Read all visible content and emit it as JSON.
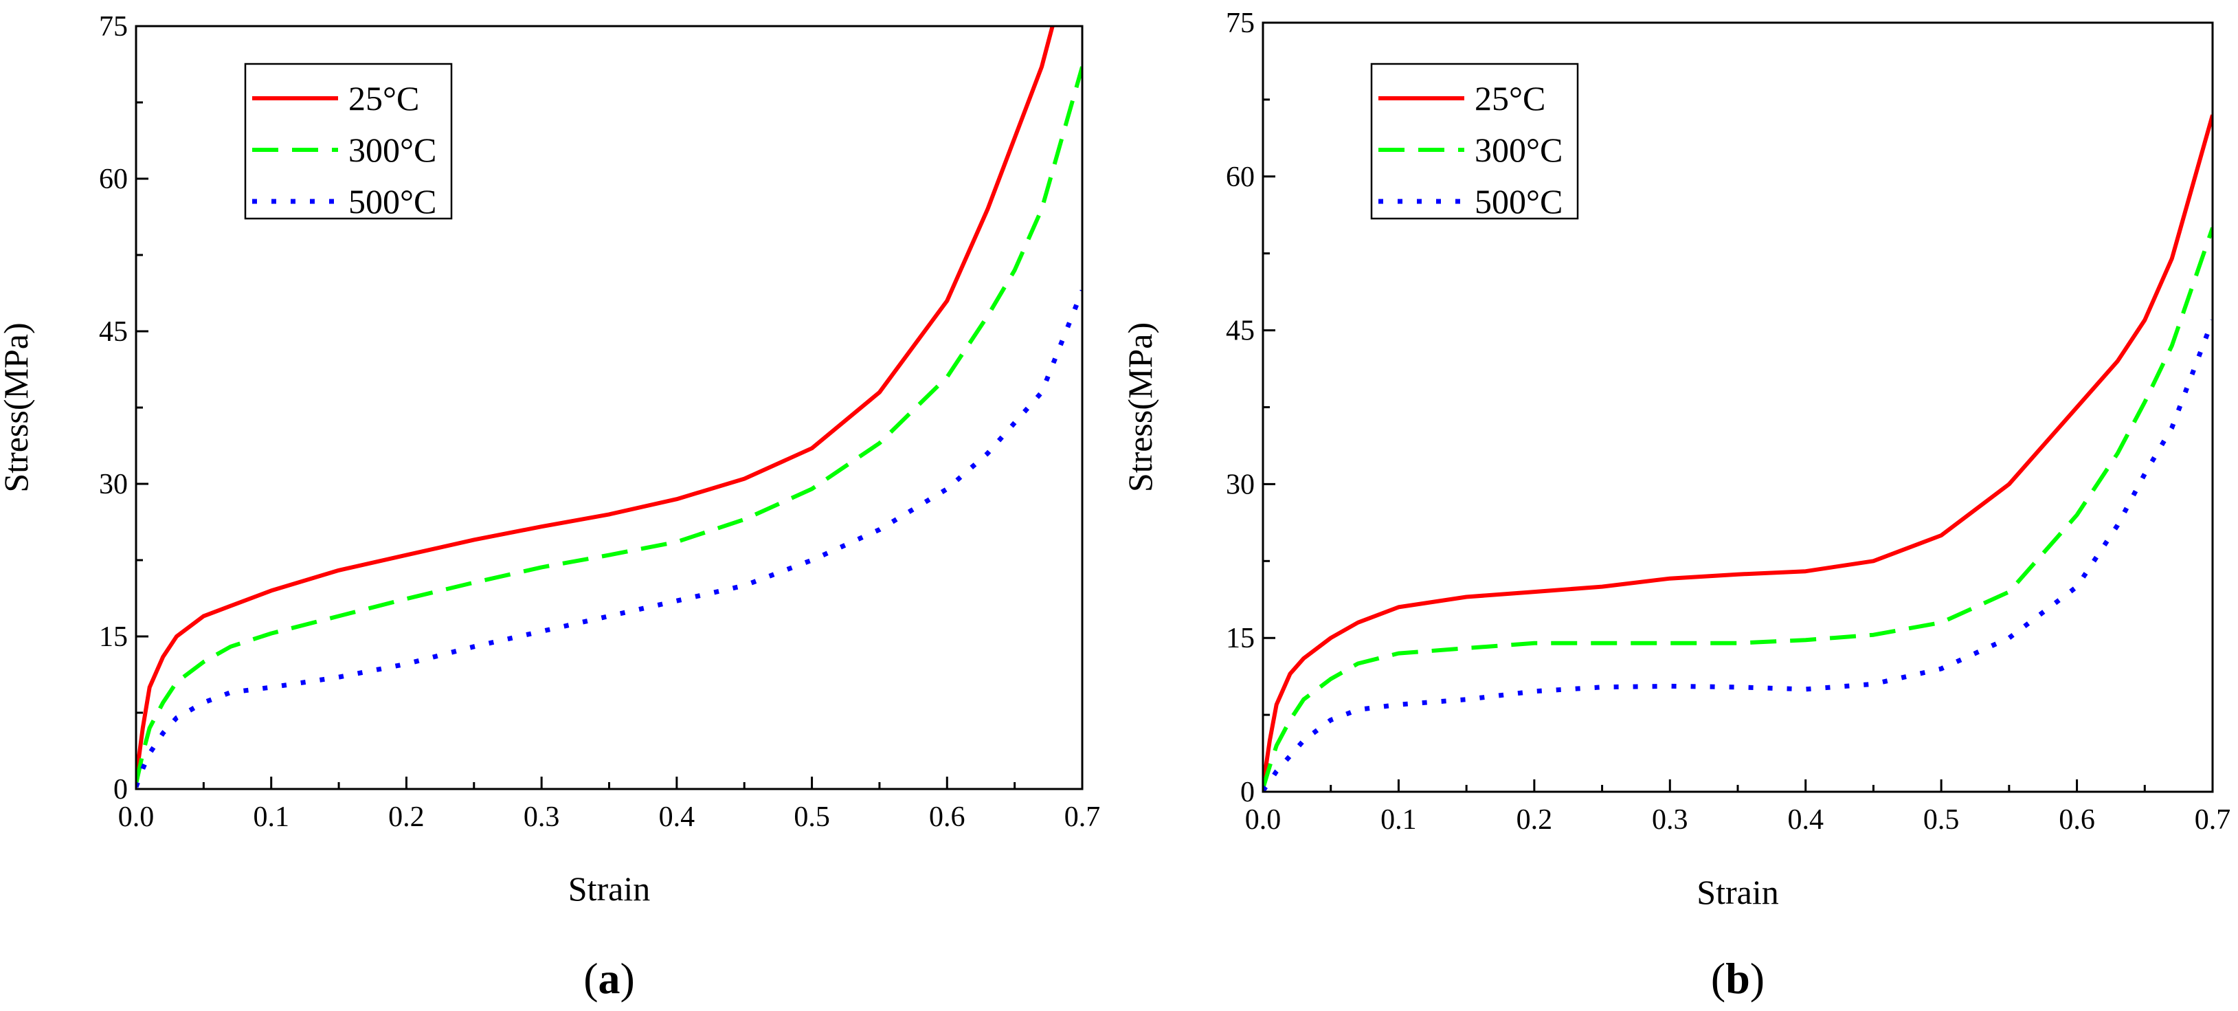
{
  "chart_data": [
    {
      "type": "line",
      "panel_label": "a",
      "xlabel": "Strain",
      "ylabel": "Stress(MPa)",
      "xlim": [
        0.0,
        0.7
      ],
      "ylim": [
        0,
        75
      ],
      "xticks": [
        "0.0",
        "0.1",
        "0.2",
        "0.3",
        "0.4",
        "0.5",
        "0.6",
        "0.7"
      ],
      "yticks": [
        "0",
        "15",
        "30",
        "45",
        "60",
        "75"
      ],
      "legend_position": "top-left",
      "series": [
        {
          "name": "25°C",
          "color": "#ff0000",
          "style": "solid",
          "x": [
            0,
            0.005,
            0.01,
            0.02,
            0.03,
            0.05,
            0.07,
            0.1,
            0.15,
            0.2,
            0.25,
            0.3,
            0.35,
            0.4,
            0.45,
            0.5,
            0.55,
            0.6,
            0.63,
            0.65,
            0.67,
            0.678
          ],
          "y": [
            1,
            6,
            10,
            13,
            15,
            17,
            18,
            19.5,
            21.5,
            23,
            24.5,
            25.8,
            27,
            28.5,
            30.5,
            33.5,
            39,
            48,
            57,
            64,
            71,
            75
          ]
        },
        {
          "name": "300°C",
          "color": "#00ff00",
          "style": "dashed",
          "x": [
            0,
            0.005,
            0.01,
            0.02,
            0.03,
            0.05,
            0.07,
            0.1,
            0.15,
            0.2,
            0.25,
            0.3,
            0.35,
            0.4,
            0.45,
            0.5,
            0.55,
            0.6,
            0.63,
            0.65,
            0.67,
            0.7
          ],
          "y": [
            0.5,
            3.5,
            6,
            8.5,
            10.5,
            12.5,
            14,
            15.3,
            17,
            18.7,
            20.3,
            21.8,
            23,
            24.3,
            26.5,
            29.5,
            34,
            40.5,
            46.5,
            51,
            57,
            71
          ]
        },
        {
          "name": "500°C",
          "color": "#0000ff",
          "style": "dotted",
          "x": [
            0,
            0.005,
            0.01,
            0.02,
            0.03,
            0.05,
            0.07,
            0.1,
            0.15,
            0.2,
            0.25,
            0.3,
            0.35,
            0.4,
            0.45,
            0.5,
            0.55,
            0.6,
            0.63,
            0.65,
            0.67,
            0.7
          ],
          "y": [
            0.2,
            2,
            3.5,
            5.5,
            7,
            8.5,
            9.5,
            10,
            11,
            12.3,
            14,
            15.5,
            17,
            18.5,
            20,
            22.5,
            25.5,
            29.5,
            33,
            36,
            39,
            49
          ]
        }
      ]
    },
    {
      "type": "line",
      "panel_label": "b",
      "xlabel": "Strain",
      "ylabel": "Stress(MPa)",
      "xlim": [
        0.0,
        0.7
      ],
      "ylim": [
        0,
        75
      ],
      "xticks": [
        "0.0",
        "0.1",
        "0.2",
        "0.3",
        "0.4",
        "0.5",
        "0.6",
        "0.7"
      ],
      "yticks": [
        "0",
        "15",
        "30",
        "45",
        "60",
        "75"
      ],
      "legend_position": "top-left",
      "series": [
        {
          "name": "25°C",
          "color": "#ff0000",
          "style": "solid",
          "x": [
            0,
            0.005,
            0.01,
            0.02,
            0.03,
            0.05,
            0.07,
            0.1,
            0.15,
            0.2,
            0.25,
            0.3,
            0.35,
            0.4,
            0.45,
            0.5,
            0.55,
            0.6,
            0.63,
            0.65,
            0.67,
            0.7
          ],
          "y": [
            0.5,
            5,
            8.5,
            11.5,
            13,
            15,
            16.5,
            18,
            19,
            19.5,
            20,
            20.8,
            21.2,
            21.5,
            22.5,
            25,
            30,
            37.5,
            42,
            46,
            52,
            66
          ]
        },
        {
          "name": "300°C",
          "color": "#00ff00",
          "style": "dashed",
          "x": [
            0,
            0.005,
            0.01,
            0.02,
            0.03,
            0.05,
            0.07,
            0.1,
            0.15,
            0.2,
            0.25,
            0.3,
            0.35,
            0.4,
            0.45,
            0.5,
            0.55,
            0.6,
            0.63,
            0.65,
            0.67,
            0.7
          ],
          "y": [
            0.3,
            2.5,
            4.5,
            7,
            9,
            11,
            12.5,
            13.5,
            14,
            14.5,
            14.5,
            14.5,
            14.5,
            14.8,
            15.3,
            16.5,
            19.5,
            27,
            33,
            38,
            43.5,
            55
          ]
        },
        {
          "name": "500°C",
          "color": "#0000ff",
          "style": "dotted",
          "x": [
            0,
            0.005,
            0.01,
            0.02,
            0.03,
            0.05,
            0.07,
            0.1,
            0.15,
            0.2,
            0.25,
            0.3,
            0.35,
            0.4,
            0.45,
            0.5,
            0.55,
            0.6,
            0.63,
            0.65,
            0.67,
            0.7
          ],
          "y": [
            0.1,
            1,
            2,
            3.5,
            5,
            7,
            8,
            8.5,
            9,
            9.8,
            10.2,
            10.3,
            10.2,
            10,
            10.5,
            12,
            15,
            20,
            26,
            31,
            35.5,
            46
          ]
        }
      ]
    }
  ]
}
